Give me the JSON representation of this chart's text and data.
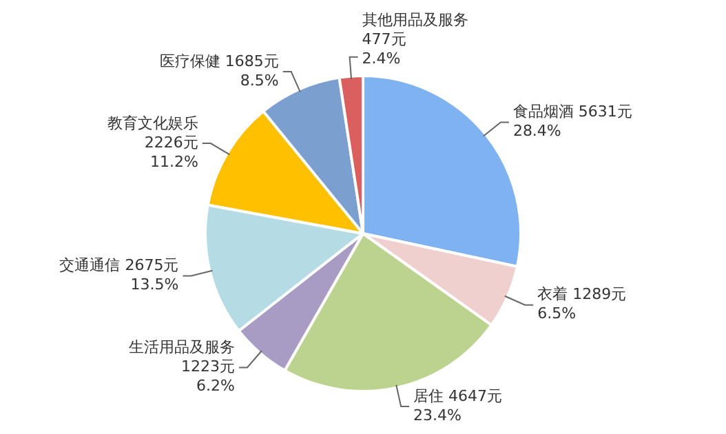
{
  "chart_data": {
    "type": "pie",
    "categories": [
      "食品烟酒",
      "衣着",
      "居住",
      "生活用品及服务",
      "交通通信",
      "教育文化娱乐",
      "医疗保健",
      "其他用品及服务"
    ],
    "values": [
      5631,
      1289,
      4647,
      1223,
      2675,
      2226,
      1685,
      477
    ],
    "colors": [
      "#7fb2f0",
      "#f0cfcf",
      "#bcd28f",
      "#a89bc4",
      "#b5dce4",
      "#ffc000",
      "#7ba0d0",
      "#d9605e"
    ],
    "value_labels": [
      "5631元\n28.4%",
      "1289元\n6.5%",
      "4647元\n23.4%",
      "1223元\n6.2%",
      "2675元\n13.5%",
      "2226元\n11.2%",
      "1685元\n8.5%",
      "477元\n2.4%"
    ],
    "legend": false
  }
}
